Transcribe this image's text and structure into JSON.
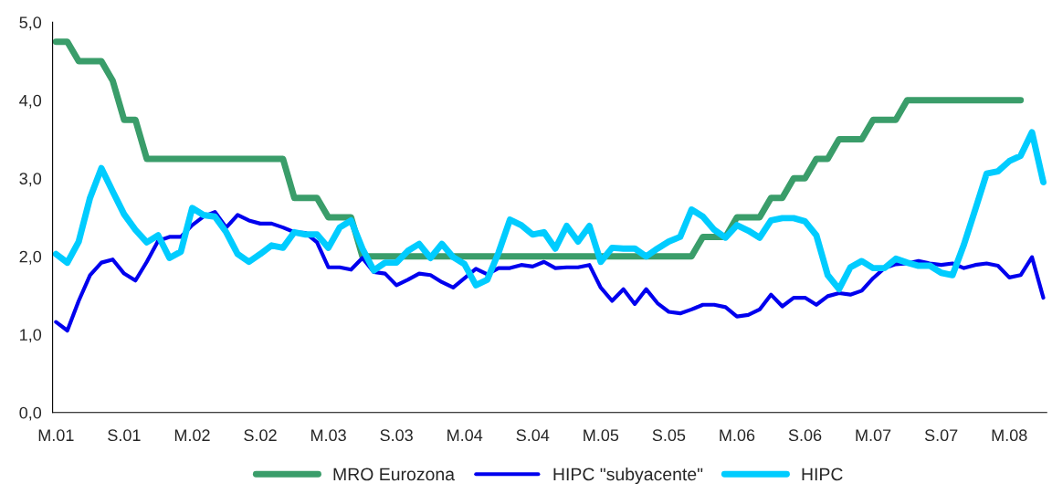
{
  "chart_data": {
    "type": "line",
    "categories": [
      "M.01",
      null,
      null,
      null,
      null,
      null,
      "S.01",
      null,
      null,
      null,
      null,
      null,
      "M.02",
      null,
      null,
      null,
      null,
      null,
      "S.02",
      null,
      null,
      null,
      null,
      null,
      "M.03",
      null,
      null,
      null,
      null,
      null,
      "S.03",
      null,
      null,
      null,
      null,
      null,
      "M.04",
      null,
      null,
      null,
      null,
      null,
      "S.04",
      null,
      null,
      null,
      null,
      null,
      "M.05",
      null,
      null,
      null,
      null,
      null,
      "S.05",
      null,
      null,
      null,
      null,
      null,
      "M.06",
      null,
      null,
      null,
      null,
      null,
      "S.06",
      null,
      null,
      null,
      null,
      null,
      "M.07",
      null,
      null,
      null,
      null,
      null,
      "S.07",
      null,
      null,
      null,
      null,
      null,
      "M.08",
      null,
      null,
      null
    ],
    "series": [
      {
        "name": "MRO Eurozona",
        "color": "#3a9d6a",
        "values": [
          4.75,
          4.75,
          4.5,
          4.5,
          4.5,
          4.25,
          3.75,
          3.75,
          3.25,
          3.25,
          3.25,
          3.25,
          3.25,
          3.25,
          3.25,
          3.25,
          3.25,
          3.25,
          3.25,
          3.25,
          3.25,
          2.75,
          2.75,
          2.75,
          2.5,
          2.5,
          2.5,
          2.0,
          2.0,
          2.0,
          2.0,
          2.0,
          2.0,
          2.0,
          2.0,
          2.0,
          2.0,
          2.0,
          2.0,
          2.0,
          2.0,
          2.0,
          2.0,
          2.0,
          2.0,
          2.0,
          2.0,
          2.0,
          2.0,
          2.0,
          2.0,
          2.0,
          2.0,
          2.0,
          2.0,
          2.0,
          2.0,
          2.25,
          2.25,
          2.25,
          2.5,
          2.5,
          2.5,
          2.75,
          2.75,
          3.0,
          3.0,
          3.25,
          3.25,
          3.5,
          3.5,
          3.5,
          3.75,
          3.75,
          3.75,
          4.0,
          4.0,
          4.0,
          4.0,
          4.0,
          4.0,
          4.0,
          4.0,
          4.0,
          4.0,
          4.0,
          null,
          null
        ]
      },
      {
        "name": "HIPC \"subyacente\"",
        "color": "#0000ee",
        "values": [
          1.16,
          1.05,
          1.43,
          1.76,
          1.92,
          1.96,
          1.78,
          1.69,
          1.93,
          2.2,
          2.25,
          2.25,
          2.4,
          2.51,
          2.57,
          2.37,
          2.53,
          2.46,
          2.42,
          2.42,
          2.37,
          2.31,
          2.3,
          2.18,
          1.86,
          1.86,
          1.83,
          1.98,
          1.8,
          1.78,
          1.63,
          1.7,
          1.78,
          1.76,
          1.67,
          1.6,
          1.72,
          1.84,
          1.77,
          1.85,
          1.85,
          1.89,
          1.87,
          1.93,
          1.85,
          1.86,
          1.86,
          1.89,
          1.6,
          1.43,
          1.58,
          1.39,
          1.58,
          1.4,
          1.29,
          1.27,
          1.32,
          1.38,
          1.38,
          1.35,
          1.23,
          1.25,
          1.32,
          1.51,
          1.36,
          1.47,
          1.47,
          1.38,
          1.49,
          1.53,
          1.51,
          1.56,
          1.72,
          1.85,
          1.9,
          1.91,
          1.94,
          1.91,
          1.89,
          1.91,
          1.85,
          1.89,
          1.91,
          1.88,
          1.73,
          1.76,
          1.99,
          1.47
        ]
      },
      {
        "name": "HIPC",
        "color": "#00ccff",
        "values": [
          2.03,
          1.92,
          2.19,
          2.75,
          3.13,
          2.83,
          2.54,
          2.34,
          2.18,
          2.27,
          1.98,
          2.06,
          2.62,
          2.53,
          2.51,
          2.31,
          2.03,
          1.93,
          2.03,
          2.14,
          2.11,
          2.31,
          2.28,
          2.28,
          2.11,
          2.37,
          2.46,
          2.1,
          1.82,
          1.92,
          1.92,
          2.07,
          2.16,
          1.98,
          2.16,
          1.99,
          1.9,
          1.63,
          1.7,
          2.05,
          2.47,
          2.4,
          2.28,
          2.31,
          2.1,
          2.39,
          2.19,
          2.39,
          1.93,
          2.11,
          2.1,
          2.1,
          2.0,
          2.1,
          2.19,
          2.25,
          2.6,
          2.51,
          2.34,
          2.24,
          2.4,
          2.33,
          2.24,
          2.46,
          2.49,
          2.49,
          2.45,
          2.27,
          1.76,
          1.58,
          1.86,
          1.94,
          1.85,
          1.85,
          1.97,
          1.92,
          1.88,
          1.88,
          1.79,
          1.76,
          2.15,
          2.6,
          3.06,
          3.09,
          3.22,
          3.29,
          3.59,
          2.95
        ]
      }
    ],
    "ylim": [
      0,
      5
    ],
    "yticks": [
      {
        "value": 0,
        "label": "0,0"
      },
      {
        "value": 1,
        "label": "1,0"
      },
      {
        "value": 2,
        "label": "2,0"
      },
      {
        "value": 3,
        "label": "3,0"
      },
      {
        "value": 4,
        "label": "4,0"
      },
      {
        "value": 5,
        "label": "5,0"
      }
    ],
    "grid": false,
    "legend": "bottom",
    "marker": "none",
    "line_style": "solid"
  }
}
